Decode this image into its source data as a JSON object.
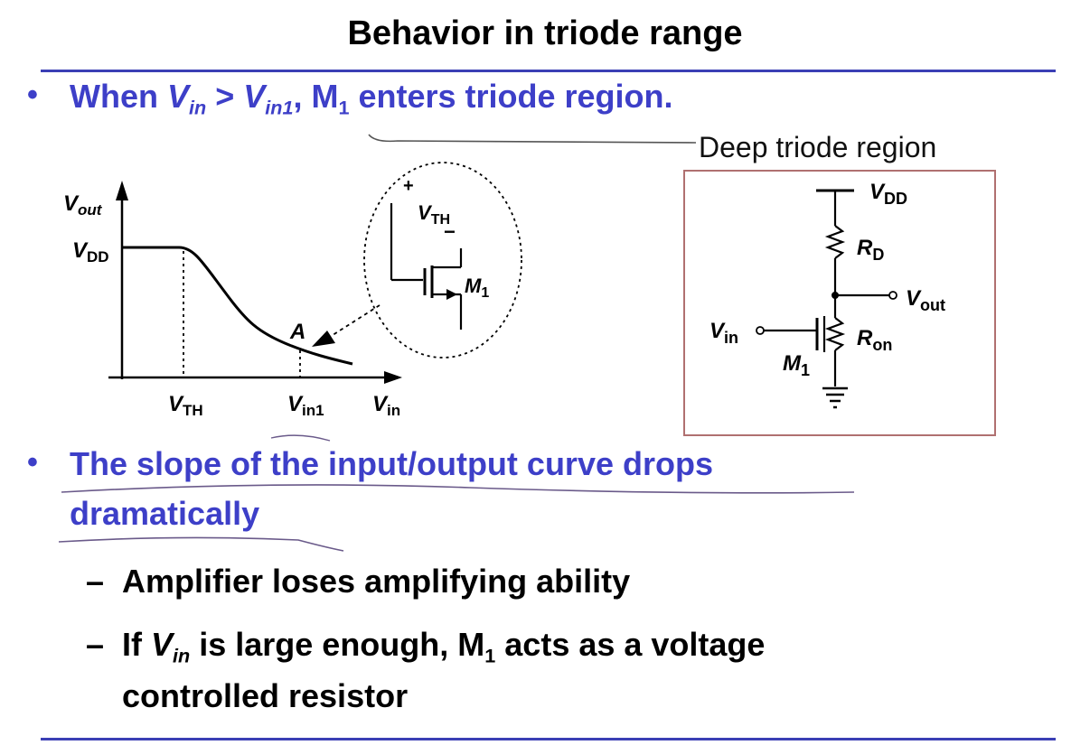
{
  "title": "Behavior in triode range",
  "accent_color": "#3d3fc8",
  "bullet1": {
    "prefix": "When ",
    "var1": "V",
    "var1_sub": "in",
    "gt": " > ",
    "var2": "V",
    "var2_sub": "in1",
    "comma": ",  M",
    "m_sub": "1",
    "suffix": " enters triode region."
  },
  "annotation": "Deep triode region",
  "plot": {
    "y_axis": "V",
    "y_axis_sub": "out",
    "vdd": "V",
    "vdd_sub": "DD",
    "x_axis": "V",
    "x_axis_sub": "in",
    "vth": "V",
    "vth_sub": "TH",
    "vin1": "V",
    "vin1_sub": "in1",
    "point_label": "A"
  },
  "inset": {
    "plus": "+",
    "minus": "−",
    "vth": "V",
    "vth_sub": "TH",
    "m": "M",
    "m_sub": "1"
  },
  "circuit": {
    "vdd": "V",
    "vdd_sub": "DD",
    "rd": "R",
    "rd_sub": "D",
    "vout": "V",
    "vout_sub": "out",
    "vin": "V",
    "vin_sub": "in",
    "ron": "R",
    "ron_sub": "on",
    "m": "M",
    "m_sub": "1"
  },
  "bullet2": {
    "line1": "The slope of the input/output curve drops",
    "line2": "dramatically"
  },
  "sub1": {
    "dash": "–",
    "text": "Amplifier loses amplifying ability"
  },
  "sub2": {
    "dash": "–",
    "prefix": "If ",
    "var": "V",
    "var_sub": "in",
    "mid": " is large enough, M",
    "m_sub": "1",
    "suffix": " acts as a voltage",
    "line2": "controlled resistor"
  }
}
